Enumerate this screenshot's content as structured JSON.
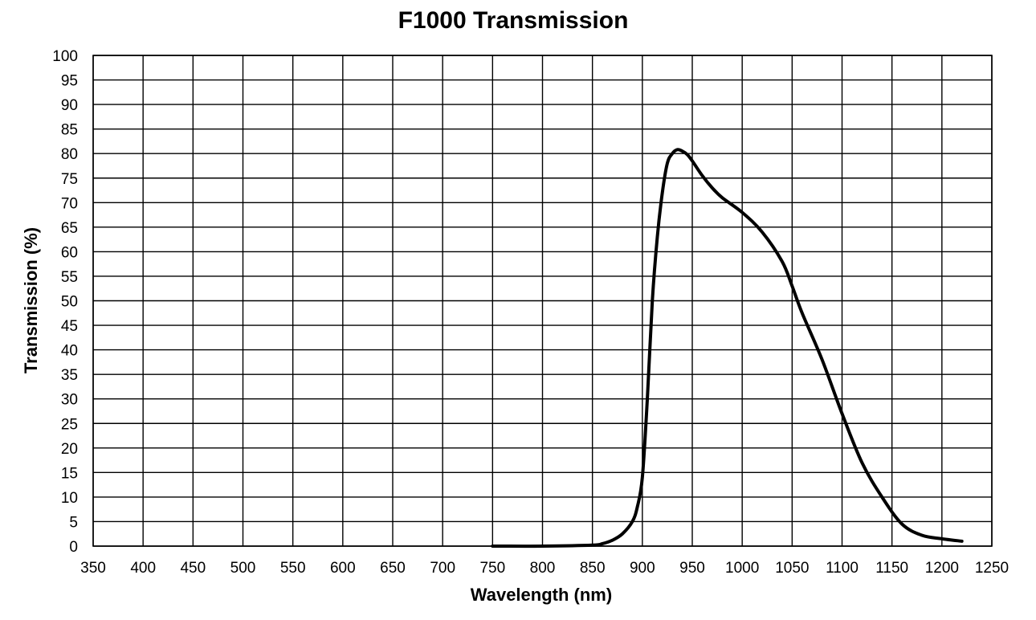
{
  "chart_data": {
    "type": "line",
    "title": "F1000 Transmission",
    "xlabel": "Wavelength (nm)",
    "ylabel": "Transmission (%)",
    "xlim": [
      350,
      1250
    ],
    "ylim": [
      0,
      100
    ],
    "x_ticks": [
      350,
      400,
      450,
      500,
      550,
      600,
      650,
      700,
      750,
      800,
      850,
      900,
      950,
      1000,
      1050,
      1100,
      1150,
      1200,
      1250
    ],
    "y_ticks": [
      0,
      5,
      10,
      15,
      20,
      25,
      30,
      35,
      40,
      45,
      50,
      55,
      60,
      65,
      70,
      75,
      80,
      85,
      90,
      95,
      100
    ],
    "grid": true,
    "legend": "none",
    "series": [
      {
        "color": "#000000",
        "x": [
          750,
          800,
          850,
          860,
          870,
          880,
          890,
          895,
          900,
          905,
          910,
          915,
          920,
          925,
          930,
          935,
          940,
          945,
          950,
          960,
          970,
          980,
          1000,
          1020,
          1040,
          1050,
          1060,
          1080,
          1100,
          1120,
          1140,
          1160,
          1180,
          1200,
          1220
        ],
        "y": [
          0,
          0,
          0.2,
          0.5,
          1.2,
          2.5,
          5,
          8,
          14,
          30,
          50,
          63,
          72,
          78,
          80,
          80.8,
          80.5,
          79.8,
          78.5,
          75.5,
          73,
          71,
          68,
          64,
          58,
          53,
          47.5,
          38,
          27,
          17,
          10,
          4.5,
          2.2,
          1.5,
          1
        ]
      }
    ]
  }
}
